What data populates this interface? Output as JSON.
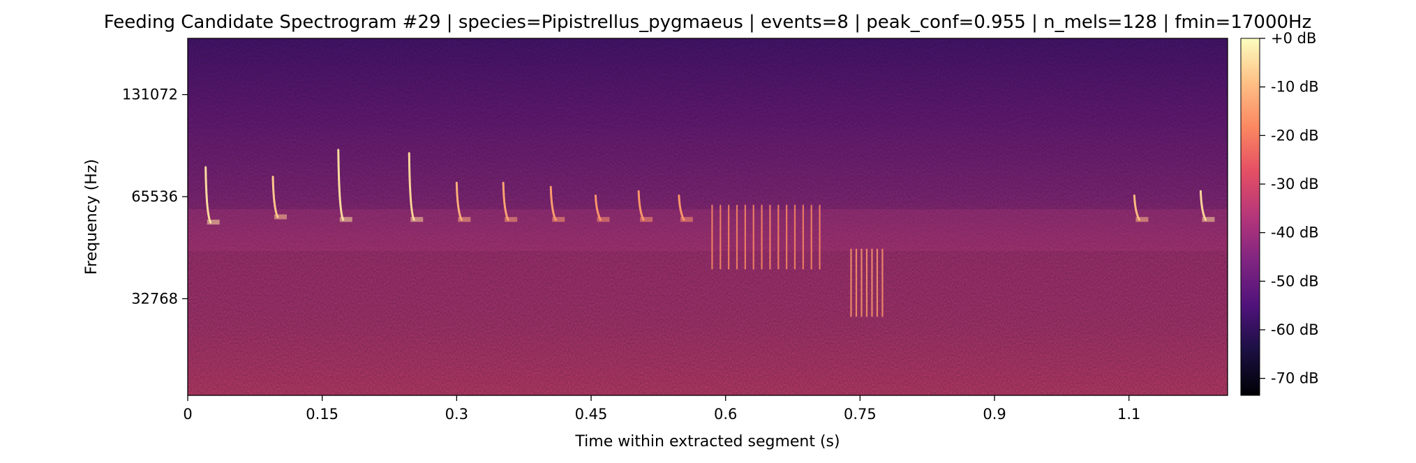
{
  "chart_data": {
    "type": "heatmap",
    "title": "Feeding Candidate Spectrogram #29 | species=Pipistrellus_pygmaeus | events=8 | peak_conf=0.955 | n_mels=128 | fmin=17000Hz",
    "xlabel": "Time within extracted segment (s)",
    "ylabel": "Frequency (Hz)",
    "xlim": [
      0,
      1.16
    ],
    "yscale": "log2",
    "ylim": [
      17000,
      192000
    ],
    "x_ticks": [
      {
        "value": 0,
        "label": "0"
      },
      {
        "value": 0.15,
        "label": "0.15"
      },
      {
        "value": 0.3,
        "label": "0.3"
      },
      {
        "value": 0.45,
        "label": "0.45"
      },
      {
        "value": 0.6,
        "label": "0.6"
      },
      {
        "value": 0.75,
        "label": "0.75"
      },
      {
        "value": 0.9,
        "label": "0.9"
      },
      {
        "value": 1.05,
        "label": "1.1"
      }
    ],
    "y_ticks": [
      {
        "value": 32768,
        "label": "32768"
      },
      {
        "value": 65536,
        "label": "65536"
      },
      {
        "value": 131072,
        "label": "131072"
      }
    ],
    "colorbar": {
      "colormap": "magma",
      "range_db": [
        -73.5,
        0
      ],
      "ticks": [
        {
          "value": 0,
          "label": "+0 dB"
        },
        {
          "value": -10,
          "label": "-10 dB"
        },
        {
          "value": -20,
          "label": "-20 dB"
        },
        {
          "value": -30,
          "label": "-30 dB"
        },
        {
          "value": -40,
          "label": "-40 dB"
        },
        {
          "value": -50,
          "label": "-50 dB"
        },
        {
          "value": -60,
          "label": "-60 dB"
        },
        {
          "value": -70,
          "label": "-70 dB"
        }
      ]
    },
    "call_events": [
      {
        "t": 0.02,
        "f_high": 80000,
        "f_low": 55000,
        "db": -5
      },
      {
        "t": 0.095,
        "f_high": 75000,
        "f_low": 57000,
        "db": -8
      },
      {
        "t": 0.168,
        "f_high": 90000,
        "f_low": 56000,
        "db": -5
      },
      {
        "t": 0.247,
        "f_high": 88000,
        "f_low": 56000,
        "db": -6
      },
      {
        "t": 0.3,
        "f_high": 72000,
        "f_low": 56000,
        "db": -12
      },
      {
        "t": 0.352,
        "f_high": 72000,
        "f_low": 56000,
        "db": -14
      },
      {
        "t": 0.405,
        "f_high": 70000,
        "f_low": 56000,
        "db": -15
      },
      {
        "t": 0.455,
        "f_high": 66000,
        "f_low": 56000,
        "db": -16
      },
      {
        "t": 0.503,
        "f_high": 68000,
        "f_low": 56000,
        "db": -16
      },
      {
        "t": 0.548,
        "f_high": 66000,
        "f_low": 56000,
        "db": -16
      },
      {
        "t": 1.056,
        "f_high": 66000,
        "f_low": 56000,
        "db": -10
      },
      {
        "t": 1.13,
        "f_high": 68000,
        "f_low": 56000,
        "db": -6
      }
    ],
    "feeding_buzz": {
      "t_start": 0.585,
      "t_end": 0.705,
      "f_high": 62000,
      "f_low": 40000,
      "db": -18
    },
    "secondary_buzz": {
      "t_start": 0.74,
      "t_end": 0.775,
      "f_high": 46000,
      "f_low": 29000,
      "db": -16
    }
  }
}
